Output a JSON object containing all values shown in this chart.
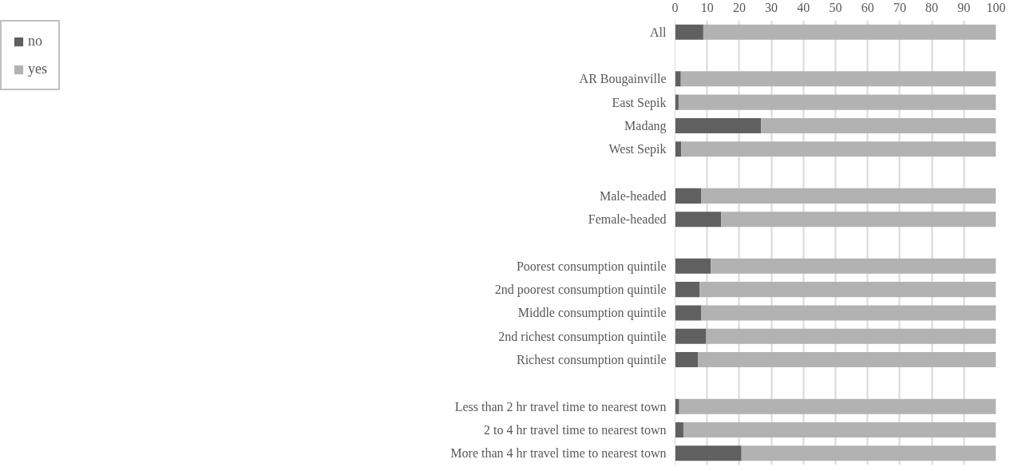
{
  "chart_data": {
    "type": "bar",
    "orientation": "horizontal",
    "stacked": true,
    "categories": [
      "All",
      null,
      "AR Bougainville",
      "East Sepik",
      "Madang",
      "West Sepik",
      null,
      "Male-headed",
      "Female-headed",
      null,
      "Poorest consumption quintile",
      "2nd poorest consumption quintile",
      "Middle consumption quintile",
      "2nd richest consumption quintile",
      "Richest consumption quintile",
      null,
      "Less than 2 hr travel time to nearest town",
      "2 to 4 hr travel time to nearest town",
      "More than 4 hr travel time to nearest town"
    ],
    "series": [
      {
        "name": "no",
        "color": "#606060",
        "values": [
          8.8,
          null,
          1.8,
          1.1,
          26.8,
          1.9,
          null,
          8.1,
          14.4,
          null,
          11.1,
          7.7,
          8.2,
          9.7,
          7.2,
          null,
          1.3,
          2.6,
          20.7
        ]
      },
      {
        "name": "yes",
        "color": "#b2b2b2",
        "values": [
          91.2,
          null,
          98.2,
          98.9,
          73.2,
          98.1,
          null,
          91.9,
          85.6,
          null,
          88.9,
          92.3,
          91.8,
          90.3,
          92.8,
          null,
          98.7,
          97.4,
          79.3
        ]
      }
    ],
    "xlim": [
      0,
      100
    ],
    "xticks": [
      0,
      10,
      20,
      30,
      40,
      50,
      60,
      70,
      80,
      90,
      100
    ],
    "grid": "x",
    "legend": "left"
  }
}
